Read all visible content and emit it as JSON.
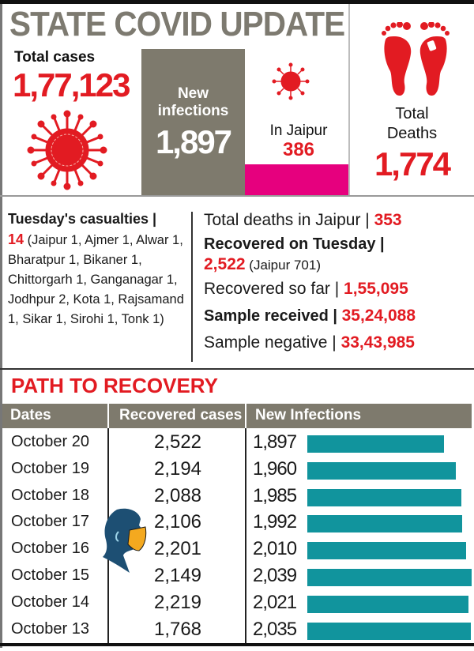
{
  "header": {
    "title": "STATE COVID UPDATE",
    "total_cases_label": "Total cases",
    "total_cases_value": "1,77,123",
    "new_infections_label_line1": "New",
    "new_infections_label_line2": "infections",
    "new_infections_value": "1,897",
    "in_jaipur_label": "In Jaipur",
    "in_jaipur_value": "386",
    "total_deaths_label_line1": "Total",
    "total_deaths_label_line2": "Deaths",
    "total_deaths_value": "1,774",
    "icons": [
      "virus-icon",
      "virus-icon-small",
      "footprints-icon",
      "masked-head-icon"
    ]
  },
  "casualties": {
    "label": "Tuesday's casualties |",
    "count": "14",
    "details": "(Jaipur 1, Ajmer 1, Alwar 1, Bharatpur 1, Bikaner 1, Chittorgarh 1, Ganganagar 1, Jodhpur 2, Kota 1, Rajsamand  1, Sikar 1, Sirohi 1, Tonk 1)"
  },
  "stats": {
    "jaipur_deaths_label": "Total deaths in Jaipur | ",
    "jaipur_deaths_value": "353",
    "recovered_tuesday_label": "Recovered on Tuesday |",
    "recovered_tuesday_value": "2,522",
    "recovered_tuesday_note": " (Jaipur 701)",
    "recovered_so_far_label": "Recovered so far | ",
    "recovered_so_far_value": "1,55,095",
    "sample_received_label": "Sample received | ",
    "sample_received_value": "35,24,088",
    "sample_negative_label": "Sample negative | ",
    "sample_negative_value": "33,43,985"
  },
  "table": {
    "title": "PATH TO RECOVERY",
    "headers": [
      "Dates",
      "Recovered cases",
      "New Infections"
    ],
    "rows": [
      {
        "date": "October 20",
        "recovered": "2,522",
        "new": "1,897"
      },
      {
        "date": "October 19",
        "recovered": "2,194",
        "new": "1,960"
      },
      {
        "date": "October 18",
        "recovered": "2,088",
        "new": "1,985"
      },
      {
        "date": "October 17",
        "recovered": "2,106",
        "new": "1,992"
      },
      {
        "date": "October 16",
        "recovered": "2,201",
        "new": "2,010"
      },
      {
        "date": "October 15",
        "recovered": "2,149",
        "new": "2,039"
      },
      {
        "date": "October 14",
        "recovered": "2,219",
        "new": "2,021"
      },
      {
        "date": "October 13",
        "recovered": "1,768",
        "new": "2,035"
      }
    ]
  },
  "colors": {
    "accent_red": "#e21b22",
    "panel_gray": "#7e7a6d",
    "magenta": "#e6007e",
    "bar_teal": "#11949d"
  },
  "chart_data": {
    "type": "table",
    "title": "PATH TO RECOVERY",
    "categories": [
      "October 20",
      "October 19",
      "October 18",
      "October 17",
      "October 16",
      "October 15",
      "October 14",
      "October 13"
    ],
    "series": [
      {
        "name": "Recovered cases",
        "values": [
          2522,
          2194,
          2088,
          2106,
          2201,
          2149,
          2219,
          1768
        ]
      },
      {
        "name": "New Infections",
        "values": [
          1897,
          1960,
          1985,
          1992,
          2010,
          2039,
          2021,
          2035
        ],
        "display": "horizontal bar"
      }
    ],
    "summary": {
      "total_cases": 177123,
      "new_infections": 1897,
      "in_jaipur": 386,
      "total_deaths": 1774,
      "tuesday_casualties": 14,
      "total_deaths_jaipur": 353,
      "recovered_tuesday": 2522,
      "recovered_tuesday_jaipur": 701,
      "recovered_so_far": 155095,
      "sample_received": 3524088,
      "sample_negative": 3343985
    }
  }
}
